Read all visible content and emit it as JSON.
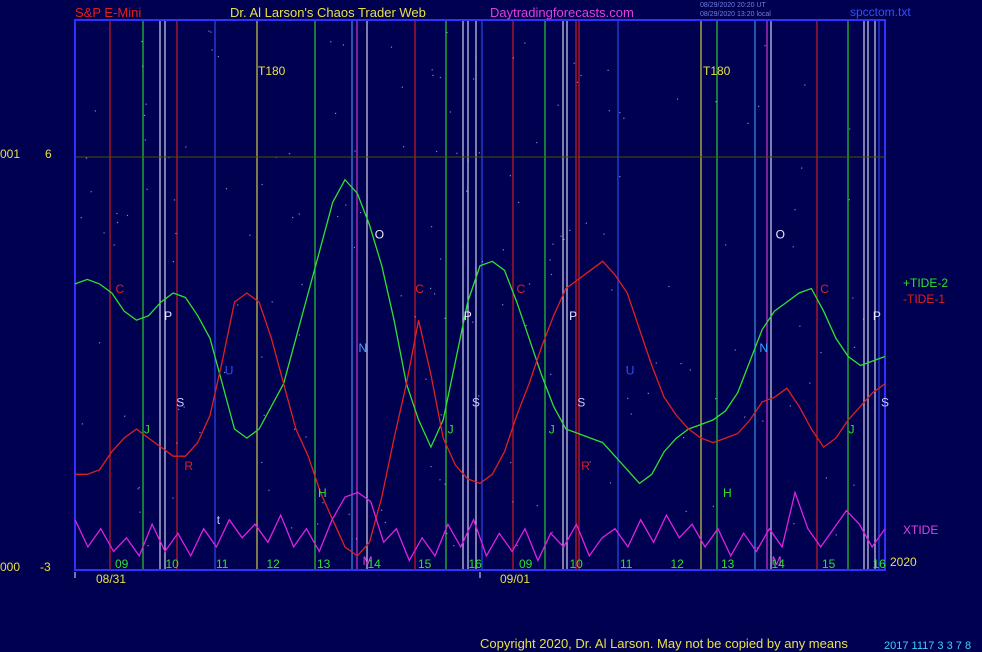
{
  "header": {
    "symbol": "S&P E-Mini",
    "author": "Dr. Al Larson's Chaos Trader Web",
    "site": "Daytradingforecasts.com",
    "stamp1": "08/29/2020 20:20 UT",
    "stamp2": "08/29/2020 13:20 local",
    "file": "spcctom.txt"
  },
  "copyright": "Copyright 2020, Dr. Al Larson. May not be copied by any means",
  "corner_text": "2017 1117 3 3 7 8",
  "colors": {
    "background": "#000050",
    "frame": "#3030ff",
    "tide2": "#30e030",
    "tide1": "#e02020",
    "xtide": "#e020e0",
    "label_yellow": "#e8e048",
    "label_magenta": "#e040e0",
    "label_red": "#e02020"
  },
  "chart_data": {
    "type": "line",
    "title": "S&P E-Mini",
    "y_axis": {
      "labels": [
        {
          "prefix": "001",
          "value": "6"
        },
        {
          "prefix": "000",
          "value": "-3"
        }
      ],
      "ylim": [
        -3,
        6
      ]
    },
    "x_axis": {
      "days": [
        {
          "label": "08/31",
          "index": 0
        },
        {
          "label": "09/01",
          "index": 1
        }
      ],
      "hour_labels": [
        "09",
        "10",
        "11",
        "12",
        "13",
        "14",
        "15",
        "16",
        "09",
        "10",
        "11",
        "12",
        "13",
        "14",
        "15",
        "16"
      ],
      "year": "2020"
    },
    "series": [
      {
        "name": "+TIDE-2",
        "color": "#30e030",
        "values": [
          3.2,
          3.3,
          3.2,
          3.0,
          2.6,
          2.4,
          2.5,
          2.8,
          3.0,
          2.9,
          2.5,
          2.0,
          1.0,
          0.0,
          -0.2,
          0.0,
          0.5,
          1.0,
          2.0,
          3.0,
          4.0,
          5.0,
          5.5,
          5.2,
          4.5,
          3.6,
          2.4,
          1.0,
          0.2,
          -0.4,
          0.2,
          1.5,
          2.8,
          3.6,
          3.7,
          3.5,
          2.8,
          2.0,
          1.2,
          0.5,
          0.0,
          -0.1,
          -0.2,
          -0.3,
          -0.6,
          -0.9,
          -1.2,
          -1.0,
          -0.5,
          -0.2,
          0.0,
          0.1,
          0.2,
          0.4,
          0.8,
          1.5,
          2.2,
          2.6,
          2.8,
          3.0,
          3.1,
          2.6,
          2.0,
          1.6,
          1.4,
          1.5,
          1.6
        ]
      },
      {
        "name": "-TIDE-1",
        "color": "#e02020",
        "values": [
          -1.0,
          -1.0,
          -0.9,
          -0.5,
          -0.2,
          0.0,
          -0.2,
          -0.4,
          -0.6,
          -0.6,
          -0.3,
          0.3,
          1.5,
          2.8,
          3.0,
          2.8,
          2.0,
          1.0,
          0.0,
          -0.6,
          -1.4,
          -2.0,
          -2.6,
          -2.8,
          -2.5,
          -1.5,
          -0.2,
          1.0,
          2.4,
          1.2,
          -0.2,
          -0.8,
          -1.1,
          -1.2,
          -1.0,
          -0.5,
          0.3,
          1.0,
          1.8,
          2.5,
          3.1,
          3.3,
          3.5,
          3.7,
          3.4,
          3.0,
          2.2,
          1.4,
          0.7,
          0.3,
          0.0,
          -0.2,
          -0.3,
          -0.2,
          -0.1,
          0.2,
          0.6,
          0.7,
          0.9,
          0.5,
          0.0,
          -0.4,
          -0.2,
          0.2,
          0.5,
          0.8,
          1.0
        ]
      },
      {
        "name": "XTIDE",
        "color": "#e020e0",
        "values": [
          -2.0,
          -2.6,
          -2.2,
          -2.7,
          -2.4,
          -2.8,
          -2.1,
          -2.7,
          -2.3,
          -2.8,
          -2.2,
          -2.6,
          -2.0,
          -2.4,
          -2.1,
          -2.5,
          -1.9,
          -2.6,
          -2.2,
          -2.7,
          -2.0,
          -1.5,
          -1.4,
          -1.6,
          -2.5,
          -2.2,
          -2.9,
          -2.4,
          -2.8,
          -2.1,
          -2.6,
          -2.0,
          -2.8,
          -2.3,
          -2.7,
          -2.2,
          -2.9,
          -2.3,
          -2.6,
          -2.1,
          -2.8,
          -2.4,
          -2.2,
          -2.6,
          -2.0,
          -2.5,
          -1.9,
          -2.4,
          -2.1,
          -2.6,
          -2.2,
          -2.8,
          -2.3,
          -2.7,
          -2.2,
          -2.6,
          -1.4,
          -2.2,
          -2.6,
          -2.2,
          -1.8,
          -2.1,
          -2.6,
          -2.2
        ]
      }
    ],
    "labels": {
      "t180": "T180",
      "tide2_label": "+TIDE-2",
      "tide1_label": "-TIDE-1",
      "xtide_label": "XTIDE"
    },
    "line_letters": [
      {
        "letter": "C",
        "color": "#e02020",
        "x": 0.05,
        "y": 3.0
      },
      {
        "letter": "P",
        "color": "#e8e8ff",
        "x": 0.11,
        "y": 2.4
      },
      {
        "letter": "S",
        "color": "#c8c8ff",
        "x": 0.125,
        "y": 0.5
      },
      {
        "letter": "J",
        "color": "#30e030",
        "x": 0.085,
        "y": -0.1
      },
      {
        "letter": "R",
        "color": "#e02020",
        "x": 0.135,
        "y": -0.9
      },
      {
        "letter": "U",
        "color": "#3050ff",
        "x": 0.185,
        "y": 1.2
      },
      {
        "letter": "t",
        "color": "#c8c8ff",
        "x": 0.175,
        "y": -2.1
      },
      {
        "letter": "H",
        "color": "#30e030",
        "x": 0.3,
        "y": -1.5
      },
      {
        "letter": "N",
        "color": "#40a0ff",
        "x": 0.35,
        "y": 1.7
      },
      {
        "letter": "M",
        "color": "#e040e0",
        "x": 0.355,
        "y": -3.0
      },
      {
        "letter": "O",
        "color": "#e8e8ff",
        "x": 0.37,
        "y": 4.2
      },
      {
        "letter": "C",
        "color": "#e02020",
        "x": 0.42,
        "y": 3.0
      },
      {
        "letter": "J",
        "color": "#30e030",
        "x": 0.46,
        "y": -0.1
      },
      {
        "letter": "P",
        "color": "#e8e8ff",
        "x": 0.48,
        "y": 2.4
      },
      {
        "letter": "S",
        "color": "#c8c8ff",
        "x": 0.49,
        "y": 0.5
      },
      {
        "letter": "C",
        "color": "#e02020",
        "x": 0.545,
        "y": 3.0
      },
      {
        "letter": "J",
        "color": "#30e030",
        "x": 0.585,
        "y": -0.1
      },
      {
        "letter": "P",
        "color": "#e8e8ff",
        "x": 0.61,
        "y": 2.4
      },
      {
        "letter": "S",
        "color": "#c8c8ff",
        "x": 0.62,
        "y": 0.5
      },
      {
        "letter": "R",
        "color": "#e02020",
        "x": 0.625,
        "y": -0.9
      },
      {
        "letter": "U",
        "color": "#3050ff",
        "x": 0.68,
        "y": 1.2
      },
      {
        "letter": "H",
        "color": "#30e030",
        "x": 0.8,
        "y": -1.5
      },
      {
        "letter": "N",
        "color": "#40a0ff",
        "x": 0.845,
        "y": 1.7
      },
      {
        "letter": "O",
        "color": "#e8e8ff",
        "x": 0.865,
        "y": 4.2
      },
      {
        "letter": "M",
        "color": "#e040e0",
        "x": 0.86,
        "y": -3.0
      },
      {
        "letter": "C",
        "color": "#e02020",
        "x": 0.92,
        "y": 3.0
      },
      {
        "letter": "J",
        "color": "#30e030",
        "x": 0.955,
        "y": -0.1
      },
      {
        "letter": "P",
        "color": "#e8e8ff",
        "x": 0.985,
        "y": 2.4
      },
      {
        "letter": "S",
        "color": "#c8c8ff",
        "x": 0.995,
        "y": 0.5
      }
    ]
  }
}
